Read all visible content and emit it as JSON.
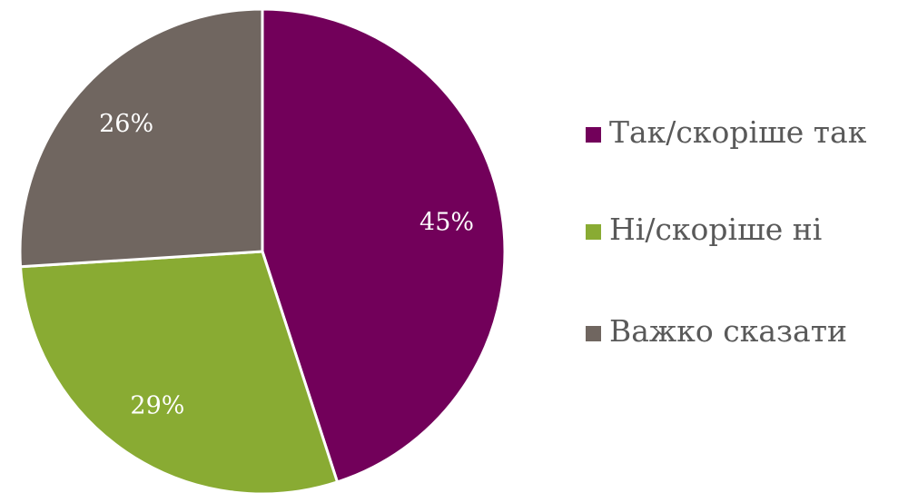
{
  "chart_data": {
    "type": "pie",
    "title": "",
    "categories": [
      "Так/скоріше так",
      "Ні/скоріше ні",
      "Важко сказати"
    ],
    "values": [
      45,
      29,
      26
    ],
    "data_labels": [
      "45%",
      "29%",
      "26%"
    ],
    "colors": [
      "#72005a",
      "#89ab33",
      "#706660"
    ],
    "label_colors": [
      "#ffffff",
      "#ffffff",
      "#ffffff"
    ],
    "start_angle_deg": 0,
    "direction": "clockwise",
    "legend_position": "right"
  }
}
